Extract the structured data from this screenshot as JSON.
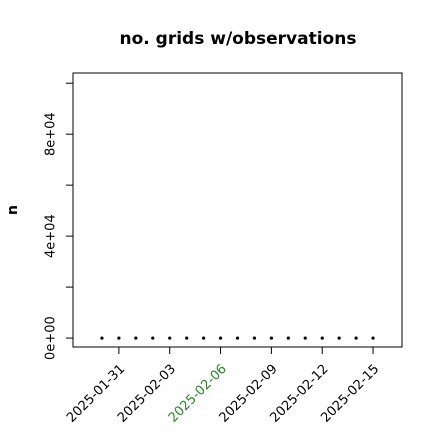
{
  "chart_data": {
    "type": "scatter",
    "title": "no. grids w/observations",
    "y_label": "n",
    "x": [
      "2025-01-30",
      "2025-01-31",
      "2025-02-01",
      "2025-02-02",
      "2025-02-03",
      "2025-02-04",
      "2025-02-05",
      "2025-02-06",
      "2025-02-07",
      "2025-02-08",
      "2025-02-09",
      "2025-02-10",
      "2025-02-11",
      "2025-02-12",
      "2025-02-13",
      "2025-02-14",
      "2025-02-15"
    ],
    "values": [
      0,
      0,
      0,
      0,
      0,
      0,
      0,
      0,
      0,
      0,
      0,
      0,
      0,
      0,
      0,
      0,
      0
    ],
    "color": "#000000",
    "xlim": [
      "2025-01-28T07:00",
      "2025-02-16T17:00"
    ],
    "xticks": [
      "2025-01-31",
      "2025-02-03",
      "2025-02-06",
      "2025-02-09",
      "2025-02-12",
      "2025-02-15"
    ],
    "xtick_colors": [
      "#000000",
      "#000000",
      "#228b22",
      "#000000",
      "#000000",
      "#000000"
    ],
    "ylim": [
      -3500,
      104000
    ],
    "yticks": [
      {
        "value": 0,
        "label": "0e+00"
      },
      {
        "value": 40000,
        "label": "4e+04"
      },
      {
        "value": 80000,
        "label": "8e+04"
      }
    ],
    "yticks_minor": [
      20000,
      60000,
      100000
    ]
  }
}
